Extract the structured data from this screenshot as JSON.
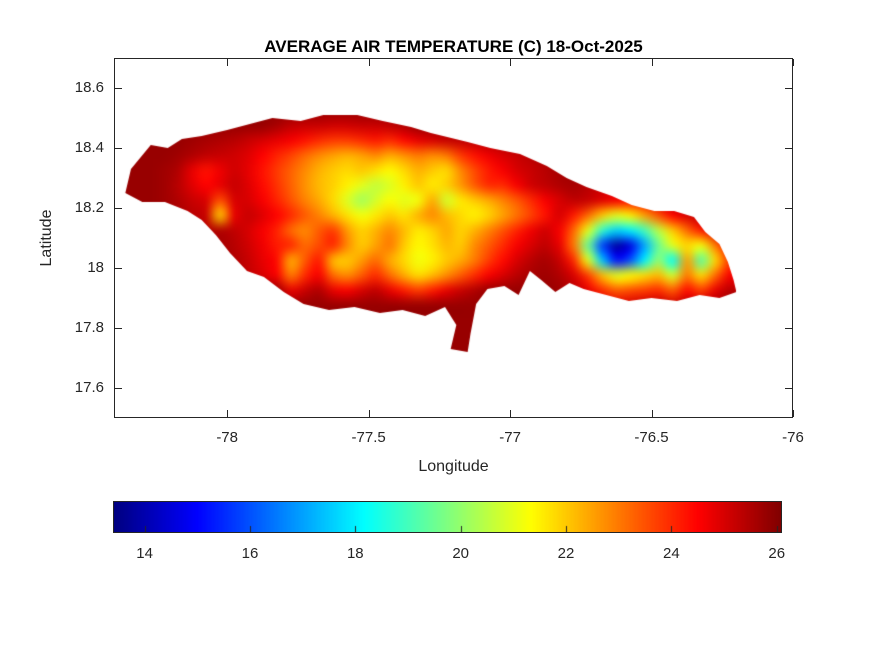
{
  "window": {
    "background": "#ffffff"
  },
  "styles": {
    "axis_color": "#262626",
    "label_color": "#262626",
    "title_color": "#000000"
  },
  "chart_data": {
    "type": "heatmap",
    "title": "AVERAGE AIR TEMPERATURE (C) 18-Oct-2025",
    "xlabel": "Longitude",
    "ylabel": "Latitude",
    "xlim": [
      -78.4,
      -76.0
    ],
    "ylim": [
      17.5,
      18.7
    ],
    "x_ticks": [
      "-78",
      "-77.5",
      "-77",
      "-76.5",
      "-76"
    ],
    "x_tick_values": [
      -78,
      -77.5,
      -77,
      -76.5,
      -76
    ],
    "y_ticks": [
      "18.6",
      "18.4",
      "18.2",
      "18",
      "17.8",
      "17.6"
    ],
    "y_tick_values": [
      18.6,
      18.4,
      18.2,
      18.0,
      17.8,
      17.6
    ],
    "grid_lines": false,
    "colormap": "jet",
    "color_limits_c": [
      13.4,
      26.1
    ],
    "colorbar": {
      "orientation": "horizontal",
      "tick_values": [
        14,
        16,
        18,
        20,
        22,
        24,
        26
      ],
      "tick_labels": [
        "14",
        "16",
        "18",
        "20",
        "22",
        "24",
        "26"
      ]
    },
    "units": "degrees C",
    "region": "Jamaica",
    "grid": {
      "lon_start": -78.375,
      "lon_step": 0.05,
      "lat_start": 18.525,
      "lat_step": -0.05,
      "ncols": 44,
      "nrows": 18,
      "values_c": [
        [
          25.8,
          25.8,
          25.8,
          25.8,
          25.8,
          25.8,
          25.8,
          25.8,
          25.8,
          25.8,
          25.8,
          25.8,
          25.8,
          25.8,
          25.8,
          25.8,
          25.8,
          25.8,
          25.8,
          25.8,
          25.8,
          25.8,
          25.8,
          25.8,
          25.8,
          25.8,
          25.8,
          25.8,
          25.8,
          25.8,
          25.8,
          25.8,
          25.8,
          25.8,
          25.8,
          25.8,
          25.8,
          25.8,
          25.8,
          25.8,
          25.8,
          25.8,
          25.8,
          25.8
        ],
        [
          25.8,
          25.8,
          25.8,
          25.8,
          25.8,
          25.8,
          25.8,
          25.8,
          25.8,
          25.8,
          25.8,
          25.6,
          25.3,
          25.2,
          25.2,
          25.1,
          25.1,
          25.2,
          25.2,
          25.3,
          25.5,
          25.8,
          25.8,
          25.8,
          25.8,
          25.8,
          25.8,
          25.8,
          25.8,
          25.8,
          25.8,
          25.8,
          25.8,
          25.8,
          25.8,
          25.8,
          25.8,
          25.8,
          25.8,
          25.8,
          25.8,
          25.8,
          25.8,
          25.8
        ],
        [
          25.8,
          25.8,
          25.8,
          25.8,
          25.8,
          25.7,
          25.6,
          25.5,
          25.4,
          25.2,
          25.0,
          24.8,
          24.6,
          24.3,
          24.0,
          23.8,
          23.8,
          24.0,
          24.2,
          24.0,
          24.4,
          24.8,
          25.0,
          25.2,
          25.3,
          25.4,
          25.5,
          25.6,
          25.7,
          25.8,
          25.8,
          25.8,
          25.8,
          25.8,
          25.8,
          25.8,
          25.8,
          25.8,
          25.8,
          25.8,
          25.8,
          25.8,
          25.8,
          25.8
        ],
        [
          25.8,
          25.8,
          25.8,
          25.8,
          25.7,
          25.5,
          25.3,
          25.2,
          25.1,
          24.9,
          24.5,
          24.1,
          23.7,
          23.2,
          22.8,
          22.5,
          22.3,
          22.5,
          22.8,
          22.4,
          22.7,
          23.0,
          22.8,
          23.0,
          23.8,
          24.3,
          24.7,
          25.0,
          25.2,
          25.4,
          25.6,
          25.7,
          25.8,
          25.8,
          25.8,
          25.8,
          25.8,
          25.8,
          25.8,
          25.8,
          25.8,
          25.8,
          25.8,
          25.8
        ],
        [
          25.8,
          25.8,
          25.8,
          25.7,
          25.5,
          24.8,
          24.3,
          24.7,
          25.1,
          24.8,
          24.3,
          23.8,
          23.3,
          22.8,
          22.3,
          22.0,
          21.8,
          22.0,
          21.7,
          21.4,
          21.8,
          22.3,
          22.0,
          21.8,
          22.8,
          23.6,
          24.2,
          24.6,
          25.0,
          25.2,
          25.4,
          25.6,
          25.7,
          25.8,
          25.8,
          25.8,
          25.8,
          25.8,
          25.8,
          25.8,
          25.8,
          25.8,
          25.8,
          25.8
        ],
        [
          25.8,
          25.8,
          25.8,
          25.7,
          25.4,
          24.9,
          24.5,
          24.8,
          25.2,
          24.9,
          24.4,
          23.9,
          23.3,
          22.7,
          22.2,
          21.9,
          21.5,
          21.0,
          20.6,
          20.9,
          21.5,
          22.0,
          21.6,
          21.9,
          22.6,
          23.4,
          24.0,
          24.0,
          24.6,
          25.1,
          25.3,
          25.5,
          25.6,
          25.4,
          25.2,
          25.0,
          24.9,
          25.1,
          25.4,
          25.6,
          25.8,
          25.8,
          25.8,
          25.8
        ],
        [
          25.8,
          25.8,
          25.8,
          25.7,
          25.5,
          25.2,
          25.0,
          23.5,
          25.0,
          25.0,
          24.6,
          24.1,
          23.5,
          22.9,
          22.4,
          21.8,
          20.9,
          20.2,
          20.8,
          21.3,
          21.0,
          21.2,
          22.4,
          20.8,
          21.6,
          22.0,
          22.4,
          22.9,
          23.4,
          24.0,
          24.6,
          25.0,
          25.3,
          25.2,
          24.9,
          24.6,
          24.4,
          24.7,
          25.1,
          25.4,
          25.6,
          25.8,
          25.8,
          25.8
        ],
        [
          25.8,
          25.8,
          25.8,
          25.8,
          25.6,
          25.4,
          25.2,
          22.0,
          24.8,
          25.2,
          24.9,
          24.5,
          24.0,
          23.4,
          22.9,
          22.3,
          21.7,
          21.2,
          21.6,
          22.0,
          21.7,
          22.3,
          22.8,
          22.2,
          21.8,
          21.5,
          21.9,
          22.5,
          23.1,
          23.7,
          24.3,
          25.0,
          24.2,
          23.2,
          22.0,
          21.0,
          21.5,
          22.5,
          23.5,
          24.5,
          25.0,
          25.3,
          25.6,
          25.8
        ],
        [
          25.8,
          25.8,
          25.8,
          25.8,
          25.7,
          25.5,
          25.4,
          25.5,
          25.3,
          25.0,
          24.6,
          24.1,
          23.2,
          22.8,
          23.4,
          23.8,
          22.6,
          21.9,
          22.3,
          22.8,
          22.2,
          21.6,
          21.9,
          22.4,
          21.9,
          22.3,
          22.9,
          23.5,
          24.1,
          24.7,
          25.1,
          24.6,
          23.2,
          21.0,
          18.8,
          17.6,
          18.0,
          19.0,
          20.5,
          22.0,
          23.2,
          24.2,
          25.0,
          25.5
        ],
        [
          25.8,
          25.8,
          25.8,
          25.8,
          25.8,
          25.6,
          25.5,
          25.6,
          25.4,
          25.1,
          24.7,
          24.2,
          24.0,
          23.2,
          23.6,
          24.0,
          22.8,
          22.0,
          22.5,
          23.0,
          22.0,
          21.4,
          21.7,
          22.2,
          22.0,
          22.8,
          23.4,
          24.0,
          24.6,
          25.0,
          25.3,
          24.8,
          23.0,
          19.5,
          15.8,
          13.8,
          14.6,
          17.0,
          19.5,
          21.0,
          21.8,
          21.2,
          23.0,
          24.5
        ],
        [
          25.8,
          25.8,
          25.8,
          25.8,
          25.8,
          25.7,
          25.6,
          25.7,
          25.5,
          25.2,
          24.8,
          24.4,
          22.4,
          23.4,
          24.2,
          22.2,
          22.0,
          22.6,
          23.2,
          22.4,
          21.8,
          21.2,
          21.5,
          22.0,
          22.4,
          23.0,
          23.8,
          24.4,
          25.0,
          25.4,
          25.6,
          25.2,
          24.0,
          21.0,
          17.5,
          15.2,
          16.0,
          18.0,
          20.0,
          18.2,
          22.5,
          19.3,
          21.8,
          23.8
        ],
        [
          25.8,
          25.8,
          25.8,
          25.8,
          25.8,
          25.8,
          25.7,
          25.8,
          25.6,
          25.3,
          25.0,
          24.6,
          23.0,
          24.0,
          24.6,
          23.2,
          22.8,
          23.4,
          24.0,
          23.2,
          22.4,
          21.8,
          22.2,
          22.8,
          23.4,
          24.0,
          24.6,
          25.0,
          25.4,
          25.6,
          25.7,
          25.5,
          25.0,
          23.8,
          22.2,
          21.0,
          21.4,
          21.8,
          22.2,
          20.8,
          23.0,
          21.8,
          23.2,
          24.6
        ],
        [
          25.8,
          25.8,
          25.8,
          25.8,
          25.8,
          25.8,
          25.8,
          25.8,
          25.8,
          25.8,
          25.8,
          25.8,
          24.8,
          25.2,
          25.5,
          24.8,
          24.6,
          25.0,
          25.3,
          24.8,
          24.2,
          23.8,
          24.2,
          24.8,
          25.2,
          25.5,
          25.8,
          25.8,
          25.8,
          25.8,
          25.8,
          25.7,
          25.4,
          24.8,
          24.0,
          23.4,
          23.6,
          23.8,
          24.0,
          23.4,
          24.4,
          23.8,
          24.8,
          25.4
        ],
        [
          25.8,
          25.8,
          25.8,
          25.8,
          25.8,
          25.8,
          25.8,
          25.8,
          25.8,
          25.8,
          25.8,
          25.8,
          25.8,
          25.8,
          25.8,
          25.8,
          25.8,
          25.8,
          25.8,
          25.8,
          25.8,
          25.8,
          25.8,
          25.8,
          25.8,
          25.8,
          25.8,
          25.8,
          25.8,
          25.8,
          25.8,
          25.8,
          25.8,
          25.4,
          25.2,
          25.0,
          25.1,
          25.3,
          25.4,
          25.2,
          25.5,
          25.4,
          25.6,
          25.8
        ],
        [
          25.8,
          25.8,
          25.8,
          25.8,
          25.8,
          25.8,
          25.8,
          25.8,
          25.8,
          25.8,
          25.8,
          25.8,
          25.8,
          25.8,
          25.8,
          25.8,
          25.8,
          25.8,
          25.8,
          25.8,
          25.8,
          25.8,
          25.8,
          25.8,
          25.8,
          25.8,
          25.8,
          25.8,
          25.8,
          25.8,
          25.8,
          25.8,
          25.8,
          25.8,
          25.8,
          25.8,
          25.8,
          25.8,
          25.8,
          25.8,
          25.8,
          25.8,
          25.8,
          25.8
        ],
        [
          25.8,
          25.8,
          25.8,
          25.8,
          25.8,
          25.8,
          25.8,
          25.8,
          25.8,
          25.8,
          25.8,
          25.8,
          25.8,
          25.8,
          25.8,
          25.8,
          25.8,
          25.8,
          25.8,
          25.8,
          25.8,
          25.8,
          25.8,
          25.8,
          25.8,
          25.8,
          25.8,
          25.8,
          25.8,
          25.8,
          25.8,
          25.8,
          25.8,
          25.8,
          25.8,
          25.8,
          25.8,
          25.8,
          25.8,
          25.8,
          25.8,
          25.8,
          25.8,
          25.8
        ],
        [
          25.8,
          25.8,
          25.8,
          25.8,
          25.8,
          25.8,
          25.8,
          25.8,
          25.8,
          25.8,
          25.8,
          25.8,
          25.8,
          25.8,
          25.8,
          25.8,
          25.8,
          25.8,
          25.8,
          25.8,
          25.8,
          25.8,
          25.8,
          25.8,
          25.8,
          25.8,
          25.8,
          25.8,
          25.8,
          25.8,
          25.8,
          25.8,
          25.8,
          25.8,
          25.8,
          25.8,
          25.8,
          25.8,
          25.8,
          25.8,
          25.8,
          25.8,
          25.8,
          25.8
        ],
        [
          25.8,
          25.8,
          25.8,
          25.8,
          25.8,
          25.8,
          25.8,
          25.8,
          25.8,
          25.8,
          25.8,
          25.8,
          25.8,
          25.8,
          25.8,
          25.8,
          25.8,
          25.8,
          25.8,
          25.8,
          25.8,
          25.8,
          25.8,
          25.8,
          25.8,
          25.8,
          25.8,
          25.8,
          25.8,
          25.8,
          25.8,
          25.8,
          25.8,
          25.8,
          25.8,
          25.8,
          25.8,
          25.8,
          25.8,
          25.8,
          25.8,
          25.8,
          25.8,
          25.8
        ]
      ]
    },
    "coastline_lonlat": [
      [
        -78.36,
        18.25
      ],
      [
        -78.34,
        18.33
      ],
      [
        -78.27,
        18.41
      ],
      [
        -78.21,
        18.4
      ],
      [
        -78.16,
        18.43
      ],
      [
        -78.09,
        18.44
      ],
      [
        -78.0,
        18.46
      ],
      [
        -77.92,
        18.48
      ],
      [
        -77.84,
        18.5
      ],
      [
        -77.74,
        18.49
      ],
      [
        -77.66,
        18.51
      ],
      [
        -77.54,
        18.51
      ],
      [
        -77.45,
        18.49
      ],
      [
        -77.35,
        18.47
      ],
      [
        -77.28,
        18.45
      ],
      [
        -77.15,
        18.42
      ],
      [
        -77.07,
        18.4
      ],
      [
        -76.965,
        18.38
      ],
      [
        -76.87,
        18.34
      ],
      [
        -76.8,
        18.3
      ],
      [
        -76.73,
        18.27
      ],
      [
        -76.64,
        18.24
      ],
      [
        -76.57,
        18.21
      ],
      [
        -76.49,
        18.19
      ],
      [
        -76.42,
        18.19
      ],
      [
        -76.35,
        18.17
      ],
      [
        -76.31,
        18.12
      ],
      [
        -76.26,
        18.08
      ],
      [
        -76.23,
        18.02
      ],
      [
        -76.21,
        17.96
      ],
      [
        -76.2,
        17.92
      ],
      [
        -76.26,
        17.9
      ],
      [
        -76.33,
        17.91
      ],
      [
        -76.41,
        17.89
      ],
      [
        -76.5,
        17.9
      ],
      [
        -76.58,
        17.89
      ],
      [
        -76.66,
        17.91
      ],
      [
        -76.74,
        17.93
      ],
      [
        -76.79,
        17.95
      ],
      [
        -76.84,
        17.92
      ],
      [
        -76.89,
        17.96
      ],
      [
        -76.93,
        17.99
      ],
      [
        -76.97,
        17.91
      ],
      [
        -77.02,
        17.94
      ],
      [
        -77.08,
        17.93
      ],
      [
        -77.12,
        17.88
      ],
      [
        -77.14,
        17.78
      ],
      [
        -77.15,
        17.72
      ],
      [
        -77.21,
        17.73
      ],
      [
        -77.19,
        17.81
      ],
      [
        -77.23,
        17.87
      ],
      [
        -77.3,
        17.84
      ],
      [
        -77.38,
        17.86
      ],
      [
        -77.46,
        17.85
      ],
      [
        -77.55,
        17.87
      ],
      [
        -77.64,
        17.86
      ],
      [
        -77.73,
        17.88
      ],
      [
        -77.8,
        17.92
      ],
      [
        -77.87,
        17.97
      ],
      [
        -77.93,
        17.99
      ],
      [
        -77.99,
        18.05
      ],
      [
        -78.04,
        18.11
      ],
      [
        -78.09,
        18.16
      ],
      [
        -78.14,
        18.19
      ],
      [
        -78.22,
        18.22
      ],
      [
        -78.3,
        18.22
      ]
    ]
  }
}
